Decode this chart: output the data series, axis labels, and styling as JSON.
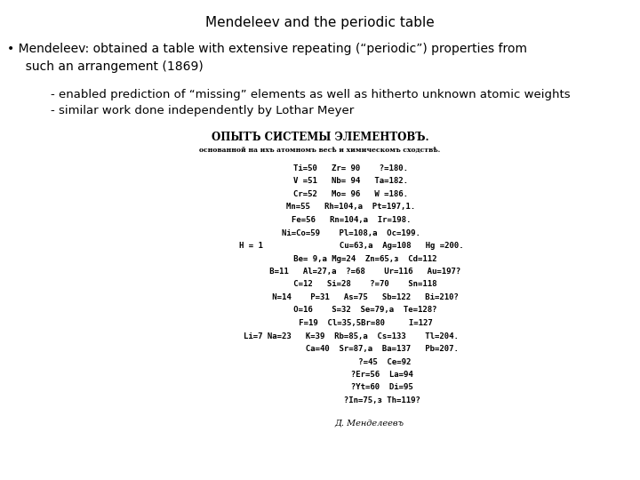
{
  "title": "Mendeleev and the periodic table",
  "bullet1_line1": "• Mendeleev: obtained a table with extensive repeating (“periodic”) properties from",
  "bullet1_line2": "  such an arrangement (1869)",
  "sub1": "    - enabled prediction of “missing” elements as well as hitherto unknown atomic weights",
  "sub2": "    - similar work done independently by Lothar Meyer",
  "table_title": "ОПЫТЪ СИСТЕМЫ ЭЛЕМЕНТОВЪ.",
  "table_subtitle": "основанной на ихъ атомномъ весѣ и химическомъ сходствѣ.",
  "table_lines": [
    "Ti=50   Zr= 90    ?=180.",
    "V =51   Nb= 94   Ta=182.",
    "Cr=52   Mo= 96   W =186.",
    "Mn=55   Rh=104,а  Pt=197,1.",
    "Fe=56   Rn=104,а  Ir=198.",
    "Ni=Co=59    Pl=108,а  Oс=199.",
    "H = 1                Cu=63,а  Ag=108   Hg =200.",
    "      Be= 9,а Mg=24  Zn=65,з  Cd=112",
    "      B=11   Al=27,а  ?=68    Ur=116   Au=197?",
    "      C=12   Si=28    ?=70    Sn=118",
    "      N=14    P=31   As=75   Sb=122   Bi=210?",
    "      O=16    S=32  Se=79,а  Te=128?",
    "      F=19  Cl=35,5Br=80     I=127",
    "Li=7 Na=23   K=39  Rb=85,а  Cs=133    Tl=204.",
    "             Ca=40  Sr=87,а  Ba=137   Pb=207.",
    "              ?=45  Ce=92",
    "             ?Er=56  La=94",
    "             ?Yt=60  Di=95",
    "             ?In=75,з Th=119?"
  ],
  "signature": "Д. Менделеевъ",
  "bg_color": "#ffffff",
  "text_color": "#000000"
}
